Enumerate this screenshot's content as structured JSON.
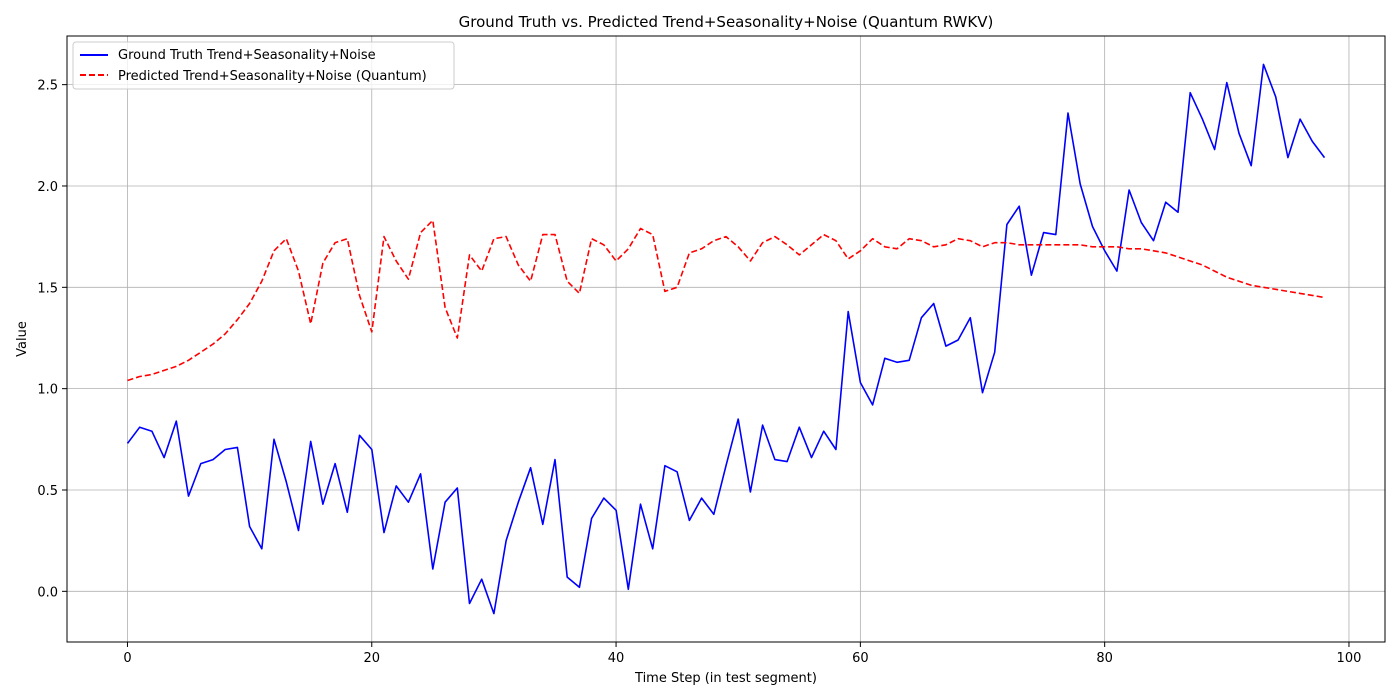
{
  "chart_data": {
    "type": "line",
    "title": "Ground Truth vs. Predicted Trend+Seasonality+Noise (Quantum RWKV)",
    "xlabel": "Time Step (in test segment)",
    "ylabel": "Value",
    "xlim": [
      -4.95,
      102.95
    ],
    "ylim": [
      -0.25,
      2.74
    ],
    "xticks": [
      0,
      20,
      40,
      60,
      80,
      100
    ],
    "yticks": [
      0.0,
      0.5,
      1.0,
      1.5,
      2.0,
      2.5
    ],
    "xtick_labels": [
      "0",
      "20",
      "40",
      "60",
      "80",
      "100"
    ],
    "ytick_labels": [
      "0.0",
      "0.5",
      "1.0",
      "1.5",
      "2.0",
      "2.5"
    ],
    "grid": true,
    "legend_position": "upper-left",
    "series": [
      {
        "name": "Ground Truth Trend+Seasonality+Noise",
        "color": "#0000ff",
        "style": "solid",
        "x": [
          0,
          1,
          2,
          3,
          4,
          5,
          6,
          7,
          8,
          9,
          10,
          11,
          12,
          13,
          14,
          15,
          16,
          17,
          18,
          19,
          20,
          21,
          22,
          23,
          24,
          25,
          26,
          27,
          28,
          29,
          30,
          31,
          32,
          33,
          34,
          35,
          36,
          37,
          38,
          39,
          40,
          41,
          42,
          43,
          44,
          45,
          46,
          47,
          48,
          49,
          50,
          51,
          52,
          53,
          54,
          55,
          56,
          57,
          58,
          59,
          60,
          61,
          62,
          63,
          64,
          65,
          66,
          67,
          68,
          69,
          70,
          71,
          72,
          73,
          74,
          75,
          76,
          77,
          78,
          79,
          80,
          81,
          82,
          83,
          84,
          85,
          86,
          87,
          88,
          89,
          90,
          91,
          92,
          93,
          94,
          95,
          96,
          97,
          98
        ],
        "values": [
          0.73,
          0.81,
          0.79,
          0.66,
          0.84,
          0.47,
          0.63,
          0.65,
          0.7,
          0.71,
          0.32,
          0.21,
          0.75,
          0.54,
          0.3,
          0.74,
          0.43,
          0.63,
          0.39,
          0.77,
          0.7,
          0.29,
          0.52,
          0.44,
          0.58,
          0.11,
          0.44,
          0.51,
          -0.06,
          0.06,
          -0.11,
          0.25,
          0.44,
          0.61,
          0.33,
          0.65,
          0.07,
          0.02,
          0.36,
          0.46,
          0.4,
          0.01,
          0.43,
          0.21,
          0.62,
          0.59,
          0.35,
          0.46,
          0.38,
          0.62,
          0.85,
          0.49,
          0.82,
          0.65,
          0.64,
          0.81,
          0.66,
          0.79,
          0.7,
          1.38,
          1.03,
          0.92,
          1.15,
          1.13,
          1.14,
          1.35,
          1.42,
          1.21,
          1.24,
          1.35,
          0.98,
          1.18,
          1.81,
          1.9,
          1.56,
          1.77,
          1.76,
          2.36,
          2.01,
          1.8,
          1.68,
          1.58,
          1.98,
          1.82,
          1.73,
          1.92,
          1.87,
          2.46,
          2.33,
          2.18,
          2.51,
          2.26,
          2.1,
          2.6,
          2.44,
          2.14,
          2.33,
          2.22,
          2.14
        ]
      },
      {
        "name": "Predicted Trend+Seasonality+Noise (Quantum)",
        "color": "#ff0000",
        "style": "dashed",
        "x": [
          0,
          1,
          2,
          3,
          4,
          5,
          6,
          7,
          8,
          9,
          10,
          11,
          12,
          13,
          14,
          15,
          16,
          17,
          18,
          19,
          20,
          21,
          22,
          23,
          24,
          25,
          26,
          27,
          28,
          29,
          30,
          31,
          32,
          33,
          34,
          35,
          36,
          37,
          38,
          39,
          40,
          41,
          42,
          43,
          44,
          45,
          46,
          47,
          48,
          49,
          50,
          51,
          52,
          53,
          54,
          55,
          56,
          57,
          58,
          59,
          60,
          61,
          62,
          63,
          64,
          65,
          66,
          67,
          68,
          69,
          70,
          71,
          72,
          73,
          74,
          75,
          76,
          77,
          78,
          79,
          80,
          81,
          82,
          83,
          84,
          85,
          86,
          87,
          88,
          89,
          90,
          91,
          92,
          93,
          94,
          95,
          96,
          97,
          98
        ],
        "values": [
          1.04,
          1.06,
          1.07,
          1.09,
          1.11,
          1.14,
          1.18,
          1.22,
          1.27,
          1.34,
          1.42,
          1.53,
          1.68,
          1.74,
          1.58,
          1.32,
          1.62,
          1.72,
          1.74,
          1.46,
          1.28,
          1.75,
          1.63,
          1.54,
          1.77,
          1.83,
          1.4,
          1.25,
          1.66,
          1.58,
          1.74,
          1.75,
          1.61,
          1.53,
          1.76,
          1.76,
          1.53,
          1.47,
          1.74,
          1.71,
          1.63,
          1.69,
          1.79,
          1.76,
          1.48,
          1.5,
          1.67,
          1.69,
          1.73,
          1.75,
          1.7,
          1.63,
          1.72,
          1.75,
          1.71,
          1.66,
          1.71,
          1.76,
          1.73,
          1.64,
          1.68,
          1.74,
          1.7,
          1.69,
          1.74,
          1.73,
          1.7,
          1.71,
          1.74,
          1.73,
          1.7,
          1.72,
          1.72,
          1.71,
          1.71,
          1.71,
          1.71,
          1.71,
          1.71,
          1.7,
          1.7,
          1.7,
          1.69,
          1.69,
          1.68,
          1.67,
          1.65,
          1.63,
          1.61,
          1.58,
          1.55,
          1.53,
          1.51,
          1.5,
          1.49,
          1.48,
          1.47,
          1.46,
          1.45
        ]
      }
    ]
  }
}
